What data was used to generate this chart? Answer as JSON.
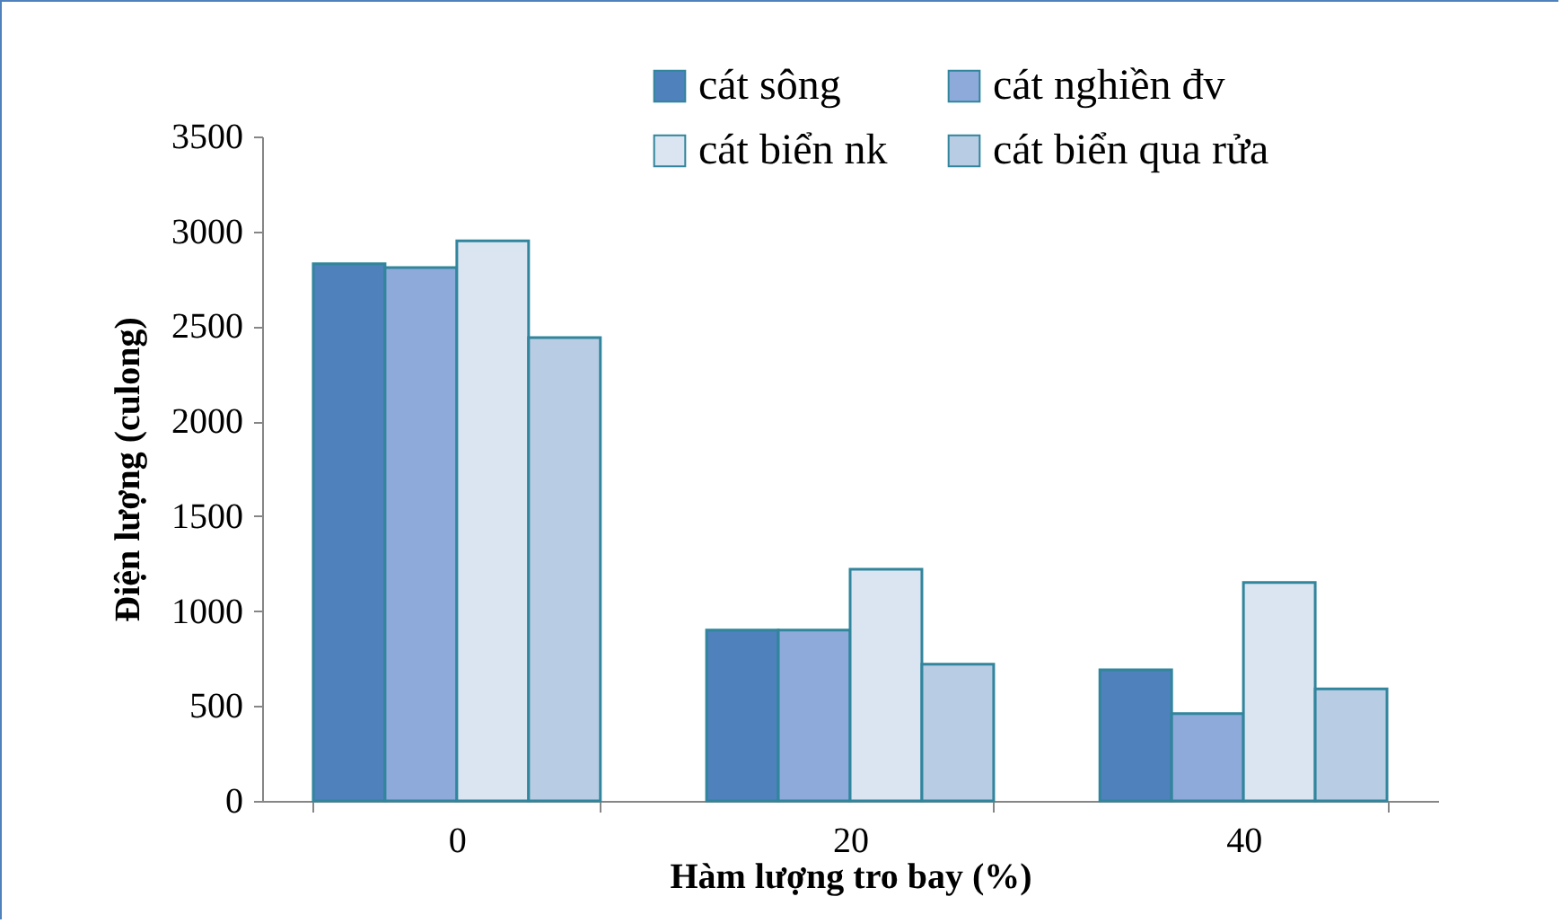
{
  "chart_data": {
    "type": "bar",
    "xlabel": "Hàm lượng tro bay (%)",
    "ylabel": "Điện lượng (culong)",
    "categories": [
      "0",
      "20",
      "40"
    ],
    "series": [
      {
        "name": "cát sông",
        "color": "#4f81bd",
        "values": [
          2830,
          900,
          690
        ]
      },
      {
        "name": "cát nghiền đv",
        "color": "#8eaadb",
        "values": [
          2810,
          900,
          460
        ]
      },
      {
        "name": "cát biển nk",
        "color": "#dbe5f1",
        "values": [
          2950,
          1220,
          1150
        ]
      },
      {
        "name": "cát biển qua rửa",
        "color": "#b8cce4",
        "values": [
          2440,
          720,
          590
        ]
      }
    ],
    "ylim": [
      0,
      3500
    ],
    "yticks": [
      0,
      500,
      1000,
      1500,
      2000,
      2500,
      3000,
      3500
    ],
    "legend": "top right"
  }
}
